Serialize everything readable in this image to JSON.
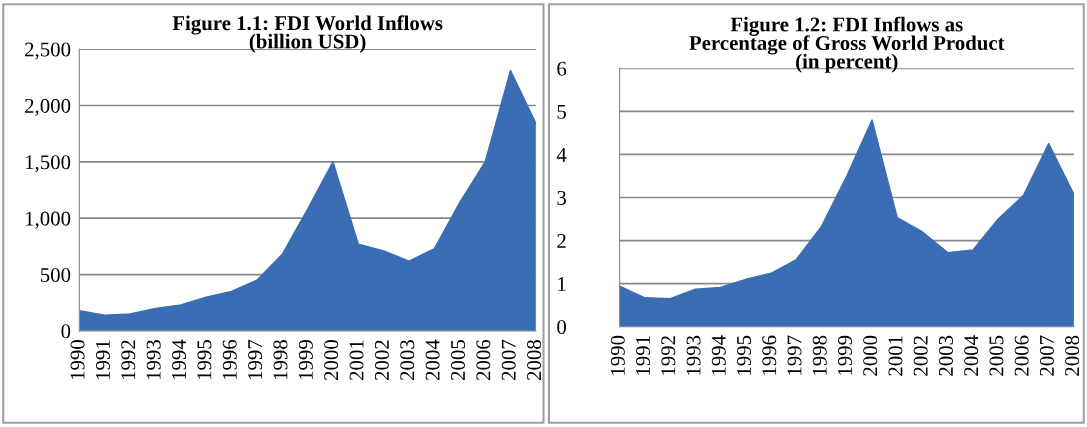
{
  "chart_data": [
    {
      "type": "area",
      "title": "Figure 1.1: FDI World Inflows\n(billion USD)",
      "categories": [
        "1990",
        "1991",
        "1992",
        "1993",
        "1994",
        "1995",
        "1996",
        "1997",
        "1998",
        "1999",
        "2000",
        "2001",
        "2002",
        "2003",
        "2004",
        "2005",
        "2006",
        "2007",
        "2008"
      ],
      "series": [
        {
          "color": "#3a6db3",
          "values": [
            180,
            140,
            150,
            200,
            230,
            300,
            350,
            450,
            680,
            1080,
            1500,
            770,
            710,
            620,
            730,
            1140,
            1500,
            2310,
            1840
          ]
        }
      ],
      "ylim": [
        0,
        2500
      ],
      "yticks": [
        {
          "value": 0,
          "label": "0"
        },
        {
          "value": 500,
          "label": "500"
        },
        {
          "value": 1000,
          "label": "1,000"
        },
        {
          "value": 1500,
          "label": "1,500"
        },
        {
          "value": 2000,
          "label": "2,000"
        },
        {
          "value": 2500,
          "label": "2,500"
        }
      ],
      "grid": "y"
    },
    {
      "type": "area",
      "title": "Figure 1.2: FDI Inflows as\nPercentage of Gross World Product\n(in percent)",
      "categories": [
        "1990",
        "1991",
        "1992",
        "1993",
        "1994",
        "1995",
        "1996",
        "1997",
        "1998",
        "1999",
        "2000",
        "2001",
        "2002",
        "2003",
        "2004",
        "2005",
        "2006",
        "2007",
        "2008"
      ],
      "series": [
        {
          "color": "#3a6db3",
          "values": [
            0.94,
            0.67,
            0.65,
            0.87,
            0.91,
            1.1,
            1.24,
            1.56,
            2.33,
            3.5,
            4.8,
            2.53,
            2.2,
            1.72,
            1.78,
            2.5,
            3.05,
            4.25,
            3.07
          ]
        }
      ],
      "ylim": [
        0,
        6
      ],
      "yticks": [
        0,
        1,
        2,
        3,
        4,
        5,
        6
      ],
      "grid": "y"
    }
  ]
}
